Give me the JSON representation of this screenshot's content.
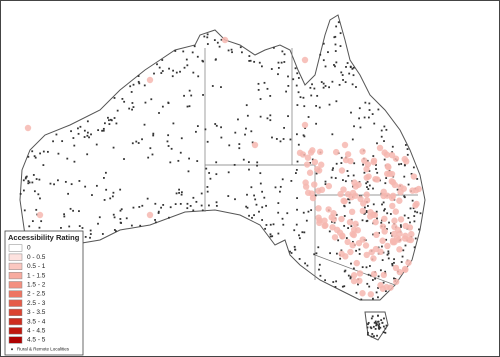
{
  "legend": {
    "title": "Accessibility Rating",
    "items": [
      {
        "label": "0",
        "color": "#ffffff"
      },
      {
        "label": "0 - 0.5",
        "color": "#fde2df"
      },
      {
        "label": "0.5 - 1",
        "color": "#fbc7c0"
      },
      {
        "label": "1 - 1.5",
        "color": "#f8ab9f"
      },
      {
        "label": "1.5 - 2",
        "color": "#f39080"
      },
      {
        "label": "2 - 2.5",
        "color": "#ed7663"
      },
      {
        "label": "2.5 - 3",
        "color": "#e55c49"
      },
      {
        "label": "3 - 3.5",
        "color": "#db4331"
      },
      {
        "label": "3.5 - 4",
        "color": "#ce2c1e"
      },
      {
        "label": "4 - 4.5",
        "color": "#bf170e"
      },
      {
        "label": "4.5 - 5",
        "color": "#ae0303"
      }
    ],
    "localities": "Rural & Remote Localities"
  }
}
